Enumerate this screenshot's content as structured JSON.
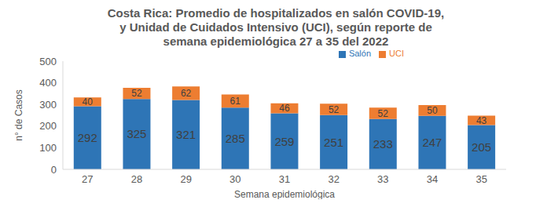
{
  "chart_data": {
    "type": "bar",
    "title": "Costa Rica: Promedio de hospitalizados en salón COVID-19, y Unidad de Cuidados Intensivo (UCI), según reporte de semana epidemiológica 27 a 35 del 2022",
    "x_label": "Semana  epidemiológica",
    "y_label": "n° de Casos",
    "categories": [
      "27",
      "28",
      "29",
      "30",
      "31",
      "32",
      "33",
      "34",
      "35"
    ],
    "series": [
      {
        "name": "Salón",
        "color": "#2e75b6",
        "values": [
          292,
          325,
          321,
          285,
          259,
          251,
          233,
          247,
          205
        ]
      },
      {
        "name": "UCI",
        "color": "#ed7d31",
        "values": [
          40,
          52,
          62,
          61,
          46,
          52,
          52,
          50,
          43
        ]
      }
    ],
    "ylim": [
      0,
      500
    ],
    "yticks": [
      0,
      100,
      200,
      300,
      400,
      500
    ],
    "stacked": true,
    "data_labels": true,
    "grid": false,
    "legend": "top-right"
  }
}
